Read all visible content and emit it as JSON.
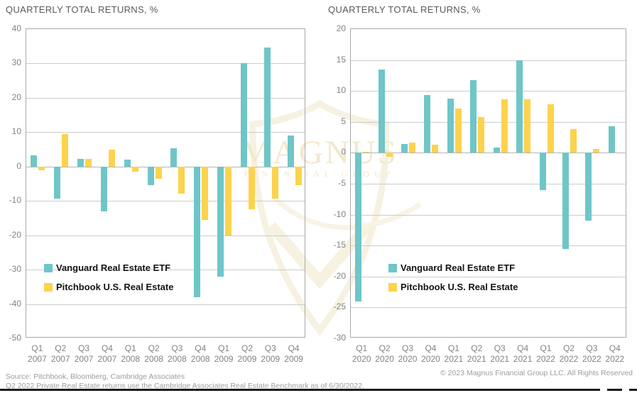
{
  "watermark": {
    "line1": "MAGNUS",
    "line2": "FINANCIAL GROUP"
  },
  "footer": {
    "source_line1": "Source: Pitchbook, Bloomberg, Cambridge Associates",
    "source_line2": "Q2 2022 Private Real Estate returns use the Cambridge Associates Real Estate Benchmark as of 6/30/2022.",
    "copyright": "© 2023 Magnus Financial Group LLC. All Rights Reserved"
  },
  "chart_data": [
    {
      "type": "bar",
      "title": "QUARTERLY TOTAL RETURNS, %",
      "categories": [
        "Q1 2007",
        "Q2 2007",
        "Q3 2007",
        "Q4 2007",
        "Q1 2008",
        "Q2 2008",
        "Q3 2008",
        "Q4 2008",
        "Q1 2009",
        "Q2 2009",
        "Q3 2009",
        "Q4 2009"
      ],
      "series": [
        {
          "name": "Vanguard Real Estate ETF",
          "color": "#6ec6c8",
          "values": [
            3.3,
            -9.4,
            2.3,
            -13.0,
            2.1,
            -5.5,
            5.3,
            -38.0,
            -32.0,
            30.0,
            34.6,
            9.0
          ]
        },
        {
          "name": "Pitchbook U.S. Real Estate",
          "color": "#fcd34c",
          "values": [
            -1.0,
            9.4,
            2.3,
            5.0,
            -1.5,
            -3.5,
            -7.8,
            -15.5,
            -20.0,
            -12.5,
            -9.3,
            -5.5
          ]
        }
      ],
      "ylim": [
        -50,
        40
      ],
      "ytick_step": 10,
      "grid": true,
      "legend_position": "inside-lower-left"
    },
    {
      "type": "bar",
      "title": "QUARTERLY TOTAL RETURNS, %",
      "categories": [
        "Q1 2020",
        "Q2 2020",
        "Q3 2020",
        "Q4 2020",
        "Q1 2021",
        "Q2 2021",
        "Q3 2021",
        "Q4 2021",
        "Q1 2022",
        "Q2 2022",
        "Q3 2022",
        "Q4 2022"
      ],
      "series": [
        {
          "name": "Vanguard Real Estate ETF",
          "color": "#6ec6c8",
          "values": [
            -24.0,
            13.5,
            1.4,
            9.3,
            8.8,
            11.8,
            0.8,
            15.0,
            -6.0,
            -15.5,
            -11.0,
            4.3
          ]
        },
        {
          "name": "Pitchbook U.S. Real Estate",
          "color": "#fcd34c",
          "values": [
            0.2,
            -0.7,
            1.6,
            1.3,
            7.2,
            5.8,
            8.7,
            8.6,
            7.9,
            3.8,
            0.6,
            0.0
          ]
        }
      ],
      "ylim": [
        -30,
        20
      ],
      "ytick_step": 5,
      "grid": true,
      "legend_position": "inside-lower-left"
    }
  ]
}
